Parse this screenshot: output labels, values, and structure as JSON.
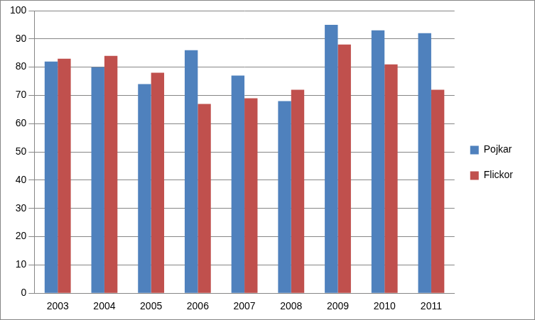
{
  "chart_data": {
    "type": "bar",
    "categories": [
      "2003",
      "2004",
      "2005",
      "2006",
      "2007",
      "2008",
      "2009",
      "2010",
      "2011"
    ],
    "series": [
      {
        "name": "Pojkar",
        "color": "#4f81bd",
        "values": [
          82,
          80,
          74,
          86,
          77,
          68,
          95,
          93,
          92
        ]
      },
      {
        "name": "Flickor",
        "color": "#c0504d",
        "values": [
          83,
          84,
          78,
          67,
          69,
          72,
          88,
          81,
          72
        ]
      }
    ],
    "ylim": [
      0,
      100
    ],
    "yticks": [
      0,
      10,
      20,
      30,
      40,
      50,
      60,
      70,
      80,
      90,
      100
    ],
    "grid": true,
    "legend": "right"
  }
}
